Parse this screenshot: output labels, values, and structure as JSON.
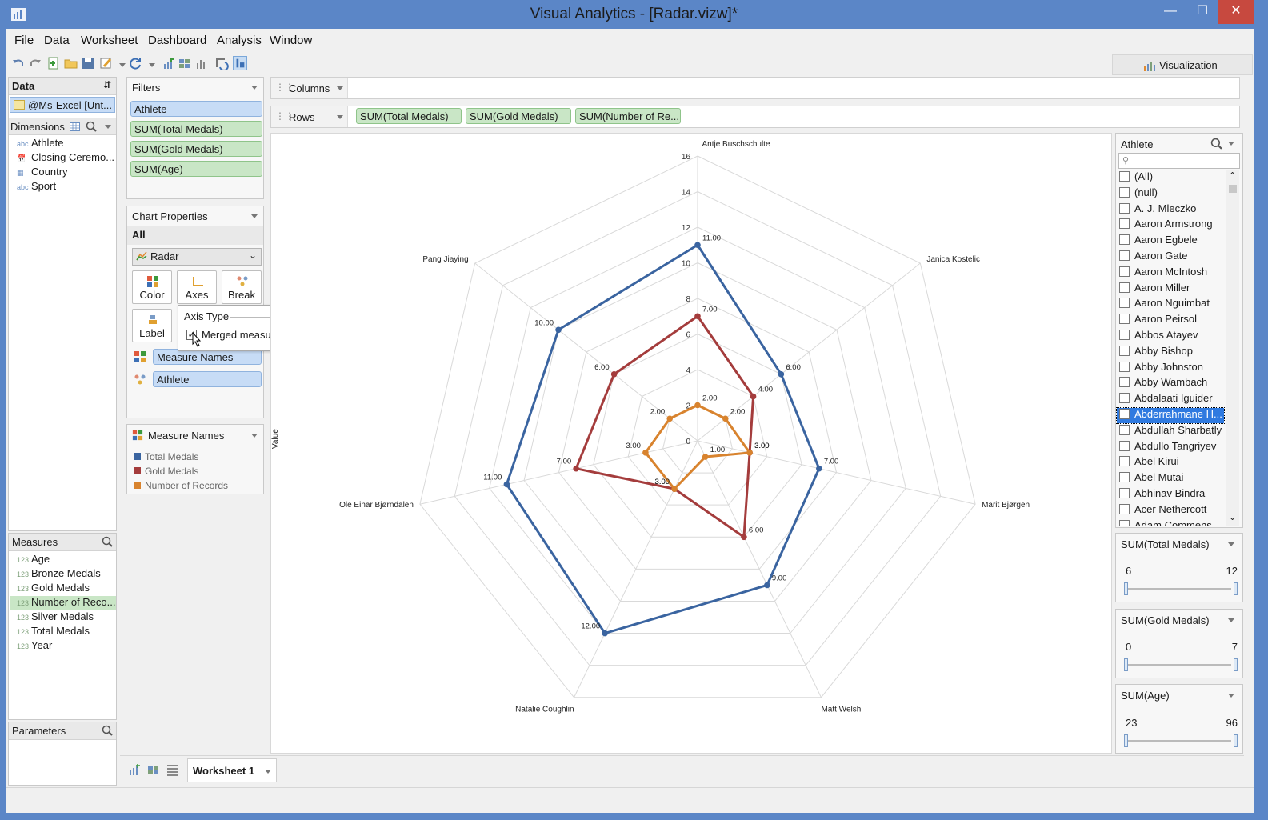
{
  "window": {
    "title": "Visual Analytics - [Radar.vizw]*"
  },
  "menu": [
    "File",
    "Data",
    "Worksheet",
    "Dashboard",
    "Analysis",
    "Window"
  ],
  "visualization_tab": "Visualization",
  "data_panel": {
    "title": "Data",
    "source": "@Ms-Excel [Unt...",
    "dimensions_title": "Dimensions",
    "dimensions": [
      {
        "type": "abc",
        "label": "Athlete"
      },
      {
        "type": "date",
        "label": "Closing Ceremo..."
      },
      {
        "type": "geo",
        "label": "Country"
      },
      {
        "type": "abc",
        "label": "Sport"
      }
    ],
    "measures_title": "Measures",
    "measures": [
      {
        "type": "123",
        "label": "Age"
      },
      {
        "type": "123",
        "label": "Bronze Medals"
      },
      {
        "type": "123",
        "label": "Gold Medals"
      },
      {
        "type": "123",
        "label": "Number of Reco..."
      },
      {
        "type": "123",
        "label": "Silver Medals"
      },
      {
        "type": "123",
        "label": "Total Medals"
      },
      {
        "type": "123",
        "label": "Year"
      }
    ],
    "parameters_title": "Parameters"
  },
  "filters": {
    "title": "Filters",
    "items": [
      "Athlete",
      "SUM(Total Medals)",
      "SUM(Gold Medals)",
      "SUM(Age)"
    ]
  },
  "chart_properties": {
    "title": "Chart Properties",
    "scope": "All",
    "chart_type": "Radar",
    "buttons": [
      "Color",
      "Axes",
      "Break",
      "Label"
    ],
    "color_field": "Measure Names",
    "break_field": "Athlete"
  },
  "axis_popup": {
    "title": "Axis Type",
    "option": "Merged measure",
    "checked": true
  },
  "legend": {
    "title": "Measure Names",
    "items": [
      {
        "label": "Total Medals",
        "color": "#3a64a0"
      },
      {
        "label": "Gold Medals",
        "color": "#a43c3c"
      },
      {
        "label": "Number of Records",
        "color": "#d8832e"
      }
    ]
  },
  "shelves": {
    "columns_label": "Columns",
    "rows_label": "Rows",
    "rows": [
      "SUM(Total Medals)",
      "SUM(Gold Medals)",
      "SUM(Number of Re..."
    ]
  },
  "athlete_filter": {
    "title": "Athlete",
    "items": [
      "(All)",
      "(null)",
      "A. J. Mleczko",
      "Aaron Armstrong",
      "Aaron Egbele",
      "Aaron Gate",
      "Aaron McIntosh",
      "Aaron Miller",
      "Aaron Nguimbat",
      "Aaron Peirsol",
      "Abbos Atayev",
      "Abby Bishop",
      "Abby Johnston",
      "Abby Wambach",
      "Abdalaati Iguider",
      "Abderrahmane H...",
      "Abdullah Sharbatly",
      "Abdullo Tangriyev",
      "Abel Kirui",
      "Abel Mutai",
      "Abhinav Bindra",
      "Acer Nethercott",
      "Adam Commens"
    ],
    "selected": "Abderrahmane H..."
  },
  "range_filters": [
    {
      "title": "SUM(Total Medals)",
      "min": "6",
      "max": "12"
    },
    {
      "title": "SUM(Gold Medals)",
      "min": "0",
      "max": "7"
    },
    {
      "title": "SUM(Age)",
      "min": "23",
      "max": "96"
    }
  ],
  "sheet_tab": "Worksheet 1",
  "chart_data": {
    "type": "radar",
    "axis_title": "Value",
    "scale": [
      0,
      2,
      4,
      6,
      8,
      10,
      12,
      14,
      16
    ],
    "rmax": 16,
    "categories": [
      "Antje Buschschulte",
      "Janica Kostelic",
      "Marit Bjørgen",
      "Matt Welsh",
      "Natalie Coughlin",
      "Ole Einar Bjørndalen",
      "Pang Jiaying"
    ],
    "series": [
      {
        "name": "Total Medals",
        "color": "#3a64a0",
        "values": [
          11,
          6,
          7,
          9,
          12,
          11,
          10
        ],
        "labels": [
          "11.00",
          "6.00",
          "7.00",
          "9.00",
          "12.00",
          "11.00",
          "10.00"
        ]
      },
      {
        "name": "Gold Medals",
        "color": "#a43c3c",
        "values": [
          7,
          4,
          3,
          6,
          3,
          7,
          6
        ],
        "labels": [
          "7.00",
          "4.00",
          "3.00",
          "6.00",
          "3.00",
          "7.00",
          "6.00"
        ]
      },
      {
        "name": "Number of Records",
        "color": "#d8832e",
        "values": [
          2,
          2,
          3,
          1,
          3,
          3,
          2
        ],
        "labels": [
          "2.00",
          "2.00",
          "3.00",
          "1.00",
          "3.00",
          "3.00",
          "2.00"
        ]
      }
    ]
  }
}
